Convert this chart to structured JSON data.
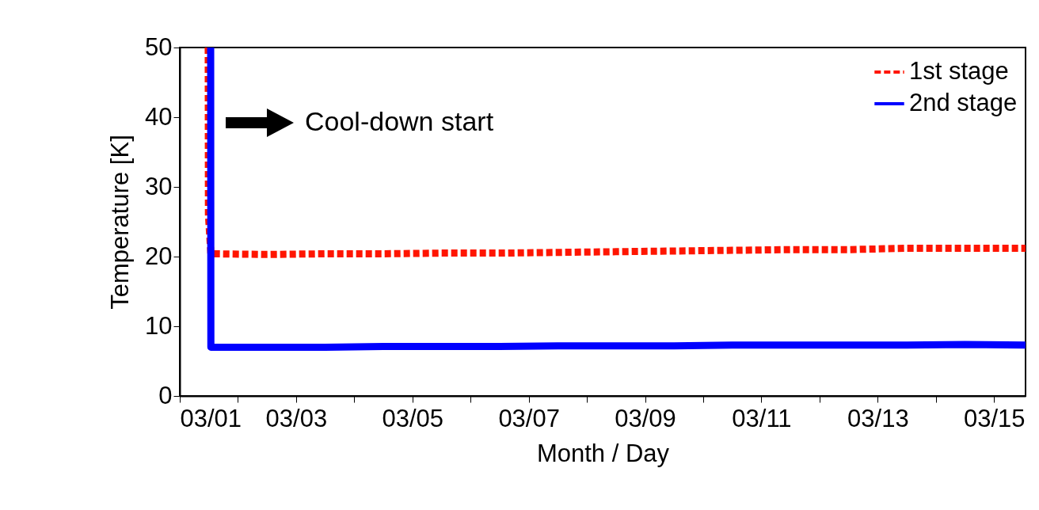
{
  "chart_data": {
    "type": "line",
    "xlabel": "Month / Day",
    "ylabel": "Temperature [K]",
    "xlim": [
      "--03-01T00:00",
      "--03-15T13:00"
    ],
    "xticks": [
      {
        "value": "--03-01",
        "label": "03/01"
      },
      {
        "value": "--03-02",
        "label": null
      },
      {
        "value": "--03-03",
        "label": "03/03"
      },
      {
        "value": "--03-04",
        "label": null
      },
      {
        "value": "--03-05",
        "label": "03/05"
      },
      {
        "value": "--03-06",
        "label": null
      },
      {
        "value": "--03-07",
        "label": "03/07"
      },
      {
        "value": "--03-08",
        "label": null
      },
      {
        "value": "--03-09",
        "label": "03/09"
      },
      {
        "value": "--03-10",
        "label": null
      },
      {
        "value": "--03-11",
        "label": "03/11"
      },
      {
        "value": "--03-12",
        "label": null
      },
      {
        "value": "--03-13",
        "label": "03/13"
      },
      {
        "value": "--03-14",
        "label": null
      },
      {
        "value": "--03-15",
        "label": "03/15"
      }
    ],
    "ylim": [
      0,
      50
    ],
    "yticks": [
      0,
      10,
      20,
      30,
      40,
      50
    ],
    "legend": "top right",
    "grid": false,
    "marker": "none",
    "annotations": [
      "Cool-down start"
    ],
    "series": [
      {
        "name": "1st stage",
        "color": "#ff1500",
        "line_style": "dashed",
        "x": [
          "--03-01T11:45",
          "--03-01T11:50",
          "--03-01T12:50",
          "--03-02T12:00",
          "--03-03T12:00",
          "--03-04T12:00",
          "--03-05T12:00",
          "--03-06T12:00",
          "--03-07T12:00",
          "--03-08T12:00",
          "--03-09T12:00",
          "--03-10T12:00",
          "--03-11T12:00",
          "--03-12T12:00",
          "--03-13T12:00",
          "--03-14T12:00",
          "--03-15T13:00"
        ],
        "values": [
          50,
          26,
          20.4,
          20.3,
          20.4,
          20.4,
          20.5,
          20.5,
          20.6,
          20.7,
          20.8,
          20.9,
          21.0,
          21.0,
          21.2,
          21.2,
          21.2
        ]
      },
      {
        "name": "2nd stage",
        "color": "#0000ff",
        "line_style": "solid",
        "x": [
          "--03-01T12:45",
          "--03-01T12:50",
          "--03-02T12:00",
          "--03-03T12:00",
          "--03-04T12:00",
          "--03-05T12:00",
          "--03-06T12:00",
          "--03-07T12:00",
          "--03-08T12:00",
          "--03-09T12:00",
          "--03-10T12:00",
          "--03-11T12:00",
          "--03-12T12:00",
          "--03-13T12:00",
          "--03-14T12:00",
          "--03-15T13:00"
        ],
        "values": [
          50,
          7.0,
          7.0,
          7.0,
          7.1,
          7.1,
          7.1,
          7.2,
          7.2,
          7.2,
          7.3,
          7.3,
          7.3,
          7.3,
          7.4,
          7.3
        ]
      }
    ]
  }
}
